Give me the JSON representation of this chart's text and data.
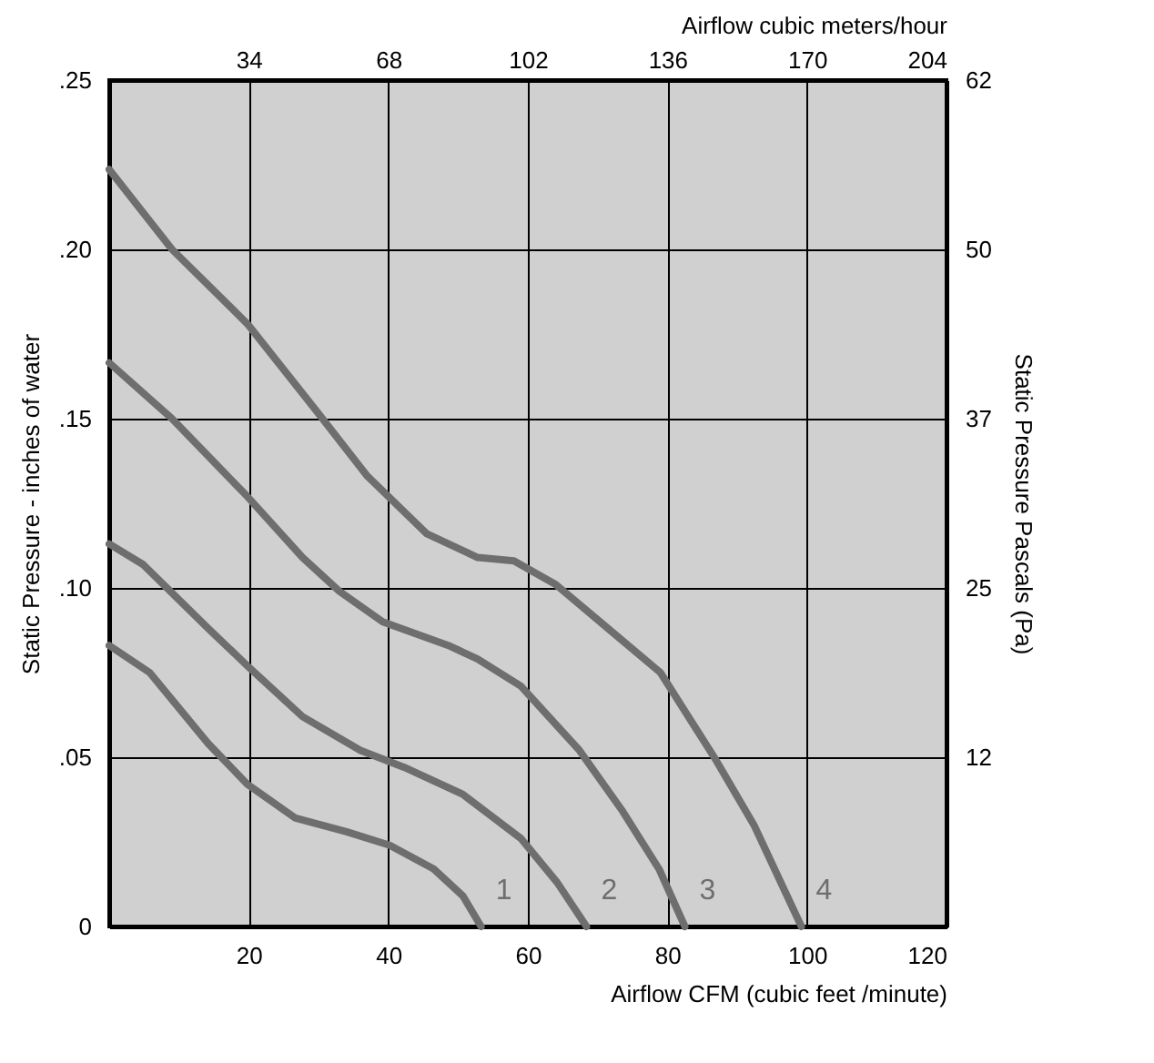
{
  "chart_data": {
    "type": "line",
    "xlabel": "Airflow  CFM (cubic feet /minute)",
    "x2label": "Airflow cubic meters/hour",
    "ylabel": "Static Pressure - inches of water",
    "y2label": "Static Pressure Pascals (Pa)",
    "xlim": [
      0,
      120
    ],
    "xticks": [
      20,
      40,
      60,
      80,
      100,
      120
    ],
    "x2lim": [
      0,
      204
    ],
    "x2ticks": [
      34,
      68,
      102,
      136,
      170,
      204
    ],
    "ylim": [
      0,
      0.25
    ],
    "yticks": [
      0,
      {
        "value": 0.05,
        "label": ".05"
      },
      {
        "value": 0.1,
        "label": ".10"
      },
      {
        "value": 0.15,
        "label": ".15"
      },
      {
        "value": 0.2,
        "label": ".20"
      },
      {
        "value": 0.25,
        "label": ".25"
      }
    ],
    "y2lim": [
      0,
      62.27
    ],
    "y2ticks": [
      {
        "value": 12.45,
        "label": "12"
      },
      {
        "value": 24.9,
        "label": "25"
      },
      {
        "value": 37.36,
        "label": "37"
      },
      {
        "value": 49.8,
        "label": "50"
      },
      {
        "value": 62.27,
        "label": "62"
      }
    ],
    "grid": true,
    "marker": "none",
    "line_style": "solid",
    "series": [
      {
        "name": "1",
        "color": "#6e6e6e",
        "x": [
          0,
          5.8,
          14.2,
          19.8,
          26.7,
          34,
          40.2,
          46.5,
          50.7,
          53.3
        ],
        "values": [
          0.083,
          0.075,
          0.054,
          0.042,
          0.032,
          0.028,
          0.024,
          0.017,
          0.009,
          0
        ]
      },
      {
        "name": "2",
        "color": "#6e6e6e",
        "x": [
          0,
          4.8,
          14.2,
          19.8,
          27.7,
          36,
          42.3,
          50.7,
          59,
          64.2,
          68.4
        ],
        "values": [
          0.113,
          0.107,
          0.088,
          0.077,
          0.062,
          0.052,
          0.047,
          0.039,
          0.026,
          0.013,
          0
        ]
      },
      {
        "name": "3",
        "color": "#6e6e6e",
        "x": [
          0,
          9,
          19.8,
          27.7,
          33,
          39.2,
          48.6,
          52.8,
          59,
          67.4,
          73.6,
          78.8,
          82.5
        ],
        "values": [
          0.1665,
          0.15,
          0.127,
          0.109,
          0.099,
          0.09,
          0.083,
          0.079,
          0.071,
          0.052,
          0.034,
          0.017,
          0
        ]
      },
      {
        "name": "4",
        "color": "#6e6e6e",
        "x": [
          0,
          9,
          19.8,
          29.8,
          37,
          45.5,
          52.8,
          58,
          64,
          71.5,
          79,
          87,
          92.4,
          99.2
        ],
        "values": [
          0.2236,
          0.2,
          0.178,
          0.152,
          0.133,
          0.116,
          0.109,
          0.108,
          0.101,
          0.088,
          0.075,
          0.049,
          0.03,
          0
        ]
      }
    ]
  }
}
